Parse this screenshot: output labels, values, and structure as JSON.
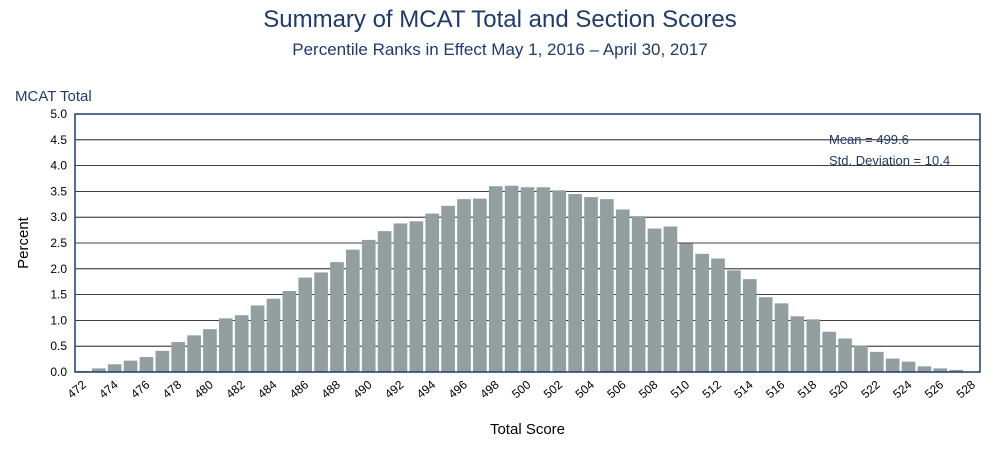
{
  "header": {
    "title": "Summary of MCAT Total and Section Scores",
    "subtitle": "Percentile Ranks in Effect May 1, 2016 – April 30, 2017"
  },
  "panel_label": "MCAT Total",
  "stats": {
    "mean": "Mean = 499.6",
    "sd": "Std. Deviation = 10.4"
  },
  "colors": {
    "bar": "#939ea0",
    "frame": "#1f3a6e",
    "grid": "#000000",
    "title": "#1f3a6e"
  },
  "chart_data": {
    "type": "bar",
    "xlabel": "Total Score",
    "ylabel": "Percent",
    "ylim": [
      0,
      5
    ],
    "yticks": [
      "0.0",
      "0.5",
      "1.0",
      "1.5",
      "2.0",
      "2.5",
      "3.0",
      "3.5",
      "4.0",
      "4.5",
      "5.0"
    ],
    "grid": true,
    "categories": [
      472,
      473,
      474,
      475,
      476,
      477,
      478,
      479,
      480,
      481,
      482,
      483,
      484,
      485,
      486,
      487,
      488,
      489,
      490,
      491,
      492,
      493,
      494,
      495,
      496,
      497,
      498,
      499,
      500,
      501,
      502,
      503,
      504,
      505,
      506,
      507,
      508,
      509,
      510,
      511,
      512,
      513,
      514,
      515,
      516,
      517,
      518,
      519,
      520,
      521,
      522,
      523,
      524,
      525,
      526,
      527,
      528
    ],
    "xtick_labels": [
      "472",
      "474",
      "476",
      "478",
      "480",
      "482",
      "484",
      "486",
      "488",
      "490",
      "492",
      "494",
      "496",
      "498",
      "500",
      "502",
      "504",
      "506",
      "508",
      "510",
      "512",
      "514",
      "516",
      "518",
      "520",
      "522",
      "524",
      "526",
      "528"
    ],
    "values": [
      0.02,
      0.07,
      0.15,
      0.22,
      0.29,
      0.41,
      0.58,
      0.71,
      0.83,
      1.04,
      1.1,
      1.29,
      1.42,
      1.57,
      1.83,
      1.93,
      2.13,
      2.37,
      2.56,
      2.73,
      2.88,
      2.92,
      3.07,
      3.22,
      3.35,
      3.36,
      3.6,
      3.61,
      3.58,
      3.58,
      3.52,
      3.45,
      3.39,
      3.35,
      3.15,
      3.02,
      2.78,
      2.82,
      2.49,
      2.29,
      2.2,
      1.97,
      1.8,
      1.45,
      1.33,
      1.08,
      1.02,
      0.78,
      0.65,
      0.51,
      0.39,
      0.26,
      0.2,
      0.11,
      0.07,
      0.04,
      0.0
    ]
  }
}
